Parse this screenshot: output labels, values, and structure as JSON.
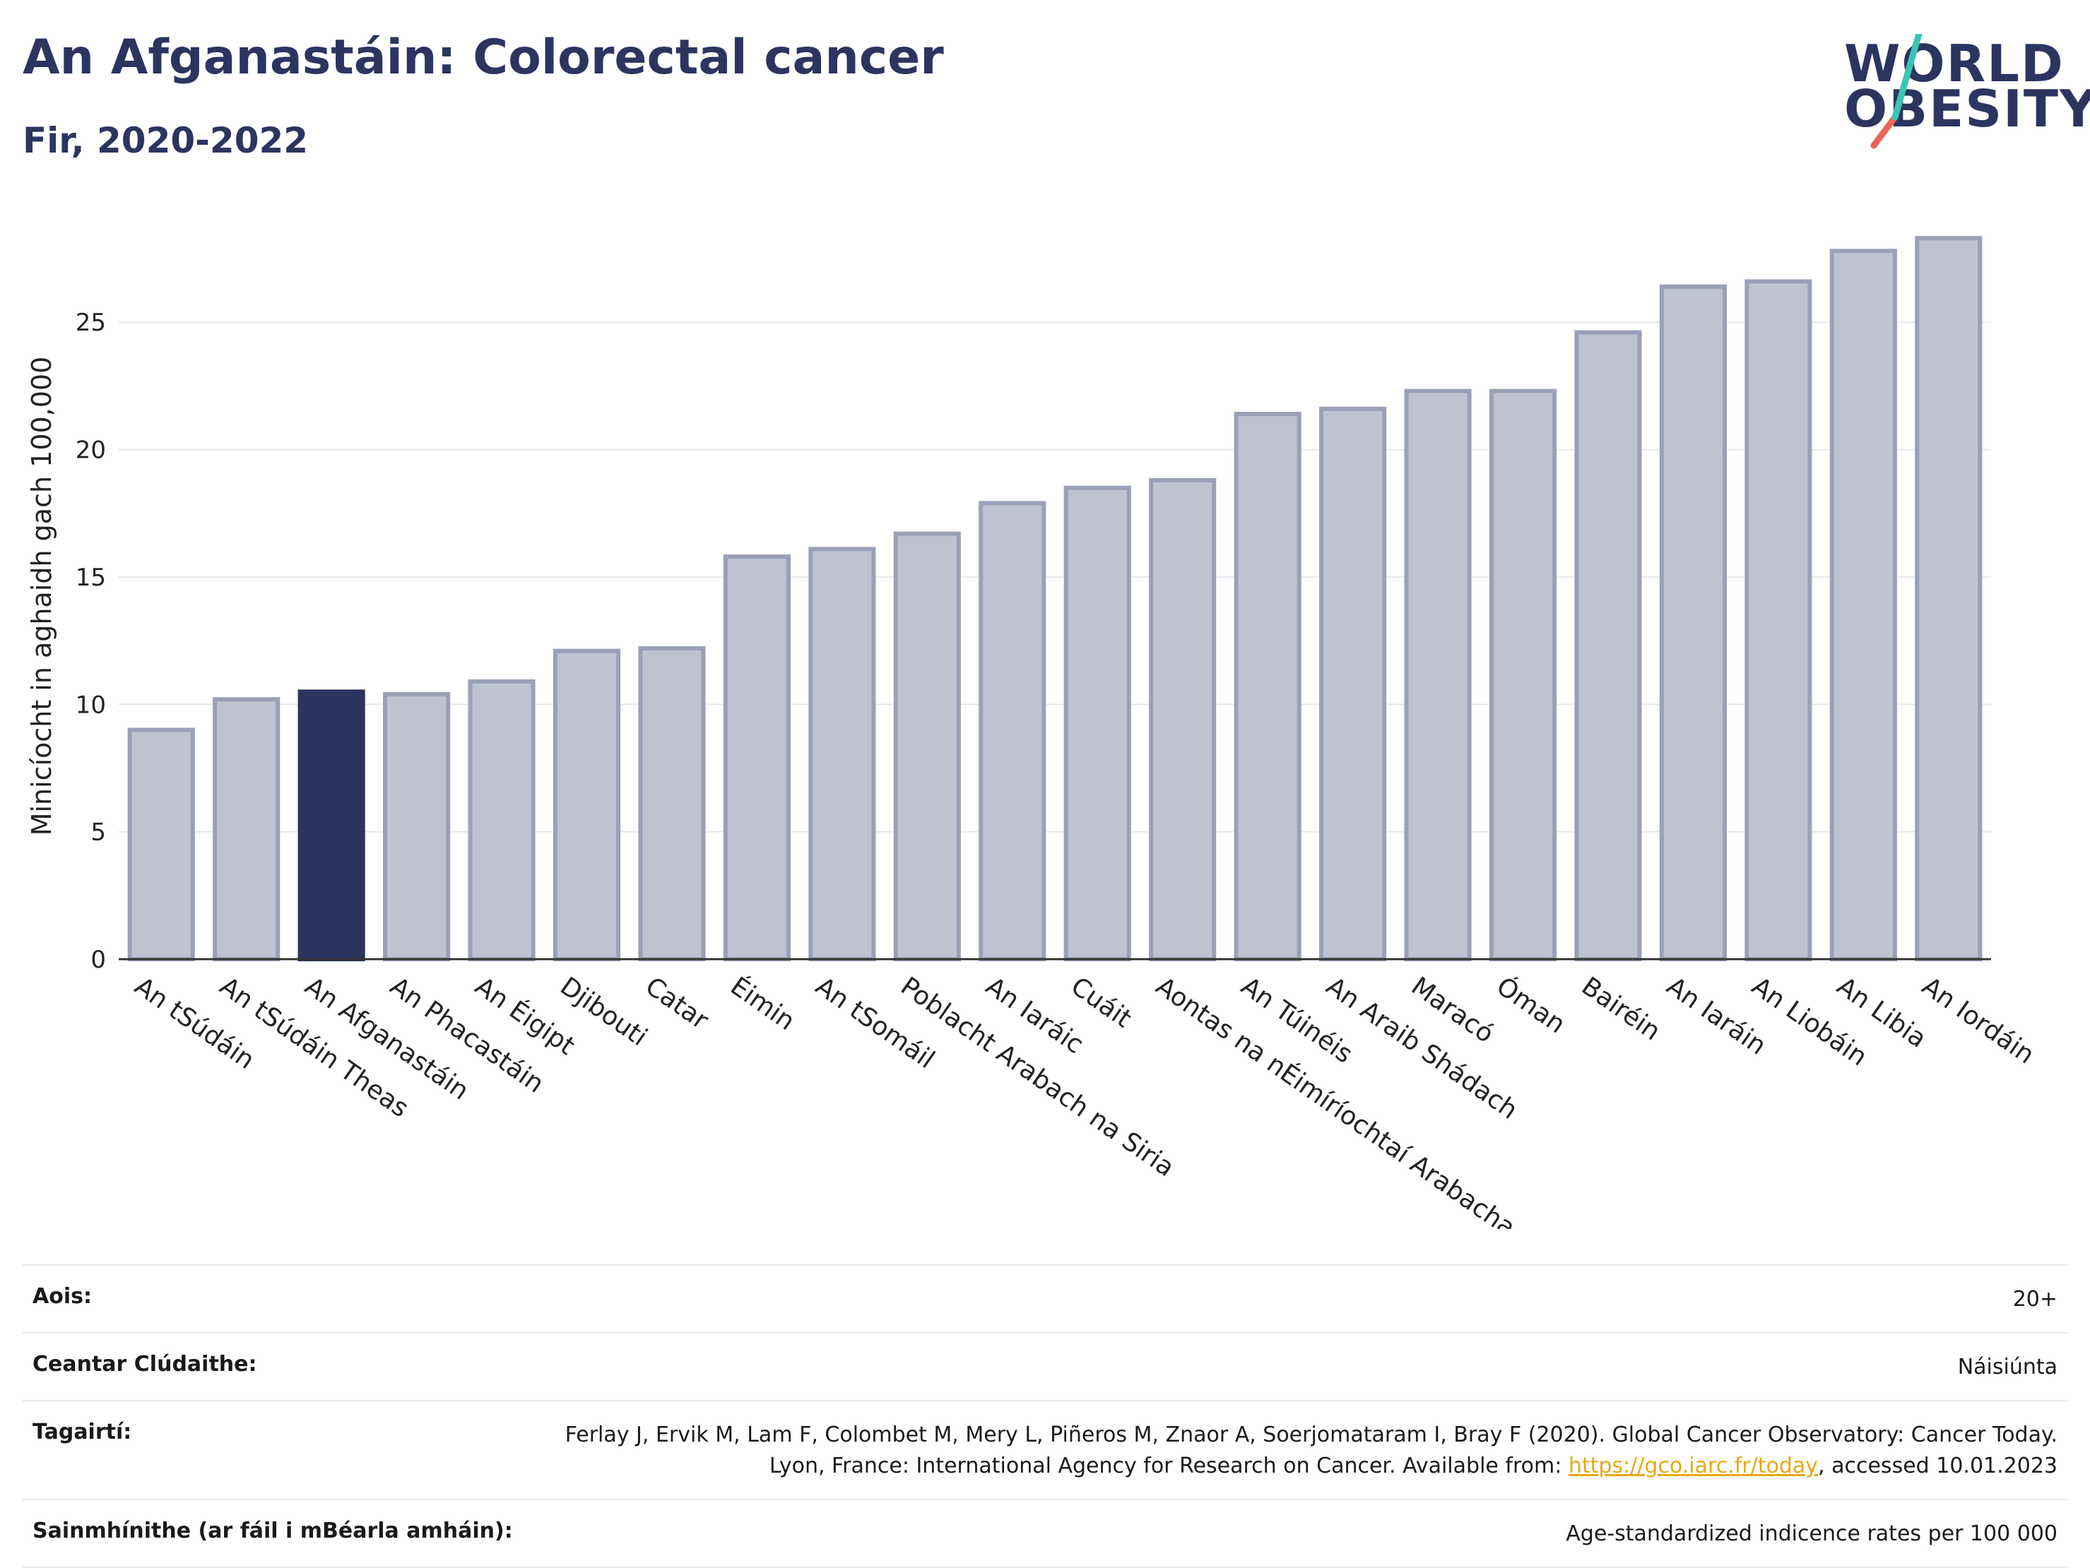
{
  "header": {
    "title": "An Afganastáin: Colorectal cancer",
    "subtitle": "Fir, 2020-2022"
  },
  "logo": {
    "line1": "WORLD",
    "line2": "OBESITY"
  },
  "colors": {
    "highlight": "#2b3560",
    "bar": "#bfc3d1",
    "bar_outline": "#9aa0b7",
    "grid": "#e6e8ee",
    "logo_teal": "#3cc4b4",
    "logo_red": "#e8675a",
    "link": "#e7a817"
  },
  "chart_data": {
    "type": "bar",
    "ylabel": "Minicíocht in aghaidh gach 100,000",
    "ylim": [
      0,
      28.5
    ],
    "yticks": [
      0,
      5,
      10,
      15,
      20,
      25
    ],
    "grid": true,
    "highlight_category": "An Afganastáin",
    "categories": [
      "An tSúdáin",
      "An tSúdáin Theas",
      "An Afganastáin",
      "An Phacastáin",
      "An Éigipt",
      "Djibouti",
      "Catar",
      "Éimin",
      "An tSomáil",
      "Poblacht Arabach na Siria",
      "An Iaráic",
      "Cuáit",
      "Aontas na nÉimíríochtaí Arabacha",
      "An Túinéis",
      "An Araib Shádach",
      "Maracó",
      "Óman",
      "Bairéin",
      "An Iaráin",
      "An Liobáin",
      "An Libia",
      "An Iordáin"
    ],
    "values": [
      9.0,
      10.2,
      10.5,
      10.4,
      10.9,
      12.1,
      12.2,
      15.8,
      16.1,
      16.7,
      17.9,
      18.5,
      18.8,
      21.4,
      21.6,
      22.3,
      22.3,
      24.6,
      26.4,
      26.6,
      27.8,
      28.3
    ]
  },
  "footer": {
    "rows": [
      {
        "label": "Aois:",
        "value": "20+"
      },
      {
        "label": "Ceantar Clúdaithe:",
        "value": "Náisiúnta"
      },
      {
        "label": "Tagairtí:",
        "value_pre": "Ferlay J, Ervik M, Lam F, Colombet M, Mery L, Piñeros M, Znaor A, Soerjomataram I, Bray F (2020). Global Cancer Observatory: Cancer Today. Lyon, France: International Agency for Research on Cancer. Available from: ",
        "link": "https://gco.iarc.fr/today",
        "value_post": ", accessed 10.01.2023"
      },
      {
        "label": "Sainmhínithe (ar fáil i mBéarla amháin):",
        "value": "Age-standardized indicence rates per 100 000"
      }
    ]
  }
}
